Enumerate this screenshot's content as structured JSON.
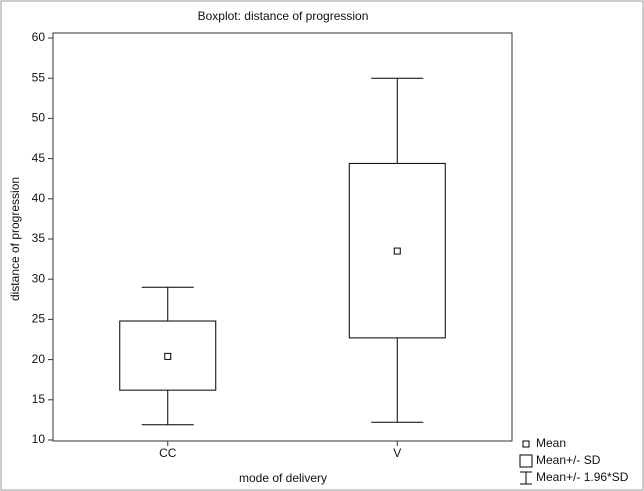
{
  "chart_data": {
    "type": "box",
    "title": "Boxplot: distance of progression",
    "x_label": "mode of delivery",
    "y_label": "distance of progression",
    "categories": [
      "CC",
      "V"
    ],
    "mean": [
      20.4,
      33.5
    ],
    "sd_low": [
      16.2,
      22.7
    ],
    "sd_high": [
      24.8,
      44.4
    ],
    "whisker_low": [
      11.9,
      12.2
    ],
    "whisker_high": [
      29,
      55
    ],
    "legend": [
      "Mean",
      "Mean+/- SD",
      "Mean+/- 1.96*SD"
    ],
    "ylim": [
      10,
      60
    ],
    "yticks": [
      10,
      15,
      20,
      25,
      30,
      35,
      40,
      45,
      50,
      55,
      60
    ],
    "color": "#000000"
  }
}
